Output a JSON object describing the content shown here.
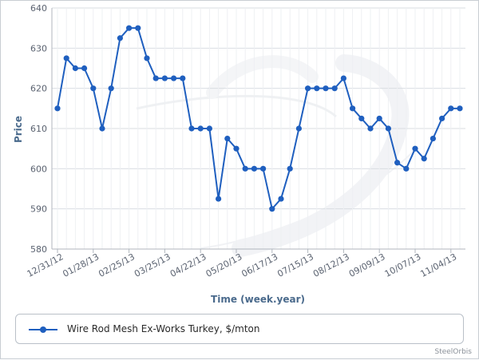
{
  "chart_data": {
    "type": "line",
    "xlabel": "Time (week.year)",
    "ylabel": "Price",
    "ylim": [
      580,
      640
    ],
    "yticks": [
      "580",
      "590",
      "600",
      "610",
      "620",
      "630",
      "640"
    ],
    "xtick_labels": [
      "12/31/12",
      "01/28/13",
      "02/25/13",
      "03/25/13",
      "04/22/13",
      "05/20/13",
      "06/17/13",
      "07/15/13",
      "08/12/13",
      "09/09/13",
      "10/07/13",
      "11/04/13"
    ],
    "grid": true,
    "legend_position": "bottom",
    "series": [
      {
        "name": "Wire Rod Mesh Ex-Works Turkey, $/mton",
        "color": "#1f5fbf",
        "values": [
          615,
          627.5,
          625,
          625,
          620,
          610,
          620,
          632.5,
          635,
          635,
          627.5,
          622.5,
          622.5,
          622.5,
          622.5,
          610,
          610,
          610,
          592.5,
          607.5,
          605,
          600,
          600,
          600,
          590,
          592.5,
          600,
          610,
          620,
          620,
          620,
          620,
          622.5,
          615,
          612.5,
          610,
          612.5,
          610,
          601.5,
          600,
          605,
          602.5,
          607.5,
          612.5,
          615,
          615
        ]
      }
    ]
  },
  "watermark": "SteelOrbis"
}
